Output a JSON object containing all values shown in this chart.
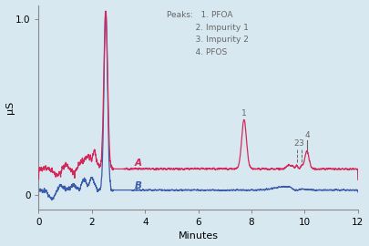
{
  "xlabel": "Minutes",
  "ylabel": "μS",
  "xlim": [
    0,
    12
  ],
  "ylim": [
    -0.08,
    1.08
  ],
  "yticks": [
    0,
    1.0
  ],
  "ytick_labels": [
    "0",
    "1.0"
  ],
  "xticks": [
    0,
    2,
    4,
    6,
    8,
    10,
    12
  ],
  "background_color": "#d8e8f0",
  "line_A_color": "#d4285a",
  "line_B_color": "#3a5aaa",
  "label_A": "A",
  "label_B": "B",
  "peaks_title": "Peaks:",
  "peaks": [
    "1. PFOA",
    "2. Impurity 1",
    "3. Impurity 2",
    "4. PFOS"
  ],
  "annotation_color": "#666666"
}
